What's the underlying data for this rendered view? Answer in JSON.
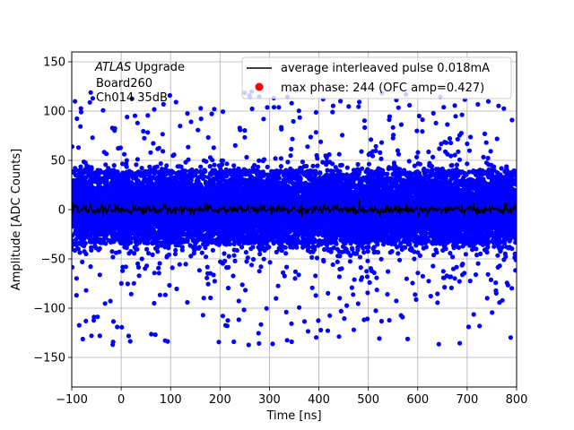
{
  "chart_data": {
    "type": "scatter",
    "xlabel": "Time [ns]",
    "ylabel": "Amplitude [ADC Counts]",
    "xlim": [
      -100,
      800
    ],
    "ylim": [
      -180,
      160
    ],
    "x_ticks": [
      -100,
      0,
      100,
      200,
      300,
      400,
      500,
      600,
      700,
      800
    ],
    "y_ticks": [
      -150,
      -100,
      -50,
      0,
      50,
      100,
      150
    ],
    "x_tick_labels": [
      "−100",
      "0",
      "100",
      "200",
      "300",
      "400",
      "500",
      "600",
      "700",
      "800"
    ],
    "y_tick_labels": [
      "−150",
      "−100",
      "−50",
      "0",
      "50",
      "100",
      "150"
    ],
    "grid": true,
    "legend_placement": "top-right",
    "annotation": {
      "atlas": "ATLAS",
      "upgrade": " Upgrade",
      "board": "Board260",
      "channel": "Ch014 35dB"
    },
    "series": [
      {
        "name": "average interleaved pulse 0.018mA",
        "kind": "line",
        "color": "#000000",
        "approx_value": 0,
        "noise_sigma": 2.5
      },
      {
        "name": "max phase: 244 (OFC amp=0.427)",
        "kind": "scatter",
        "color": "#0000ff",
        "legend_marker_color": "#ff0000",
        "center": 0,
        "dense_band": [
          -35,
          40
        ],
        "outlier_range": [
          -140,
          120
        ]
      }
    ]
  }
}
